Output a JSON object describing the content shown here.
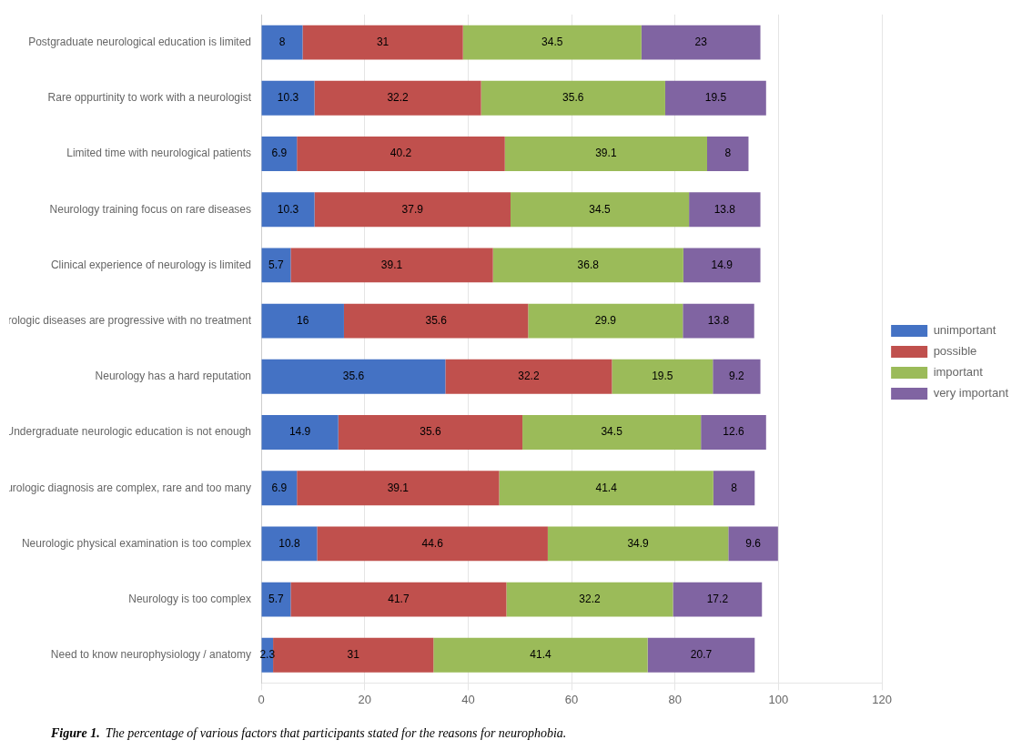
{
  "chart_data": {
    "type": "bar",
    "orientation": "horizontal",
    "stacked": true,
    "categories": [
      "Need to know neurophysiology / anatomy",
      "Neurology is too complex",
      "Neurologic physical examination is too complex",
      "Neurologic diagnosis are complex, rare and too many",
      "Undergraduate neurologic education is not enough",
      "Neurology has a hard reputation",
      "Many neurologic diseases are progressive with no treatment",
      "Clinical experience of neurology is limited",
      "Neurology training focus on rare diseases",
      "Limited time with neurological patients",
      "Rare oppurtinity to work with a neurologist",
      "Postgraduate neurological education is limited"
    ],
    "series": [
      {
        "name": "unimportant",
        "color": "#4472C4",
        "values": [
          2.3,
          5.7,
          10.8,
          6.9,
          14.9,
          35.6,
          16,
          5.7,
          10.3,
          6.9,
          10.3,
          8
        ]
      },
      {
        "name": "possible",
        "color": "#C0504D",
        "values": [
          31,
          41.7,
          44.6,
          39.1,
          35.6,
          32.2,
          35.6,
          39.1,
          37.9,
          40.2,
          32.2,
          31
        ]
      },
      {
        "name": "important",
        "color": "#9BBB59",
        "values": [
          41.4,
          32.2,
          34.9,
          41.4,
          34.5,
          19.5,
          29.9,
          36.8,
          34.5,
          39.1,
          35.6,
          34.5
        ]
      },
      {
        "name": "very important",
        "color": "#8064A2",
        "values": [
          20.7,
          17.2,
          9.6,
          8,
          12.6,
          9.2,
          13.8,
          14.9,
          13.8,
          8,
          19.5,
          23
        ]
      }
    ],
    "xlim": [
      0,
      120
    ],
    "xticks": [
      0,
      20,
      40,
      60,
      80,
      100,
      120
    ],
    "grid": true,
    "legend": "right",
    "data_labels": true,
    "annotations": [
      "Figure 1.",
      "The percentage of various factors that participants stated for the reasons for neurophobia."
    ]
  }
}
